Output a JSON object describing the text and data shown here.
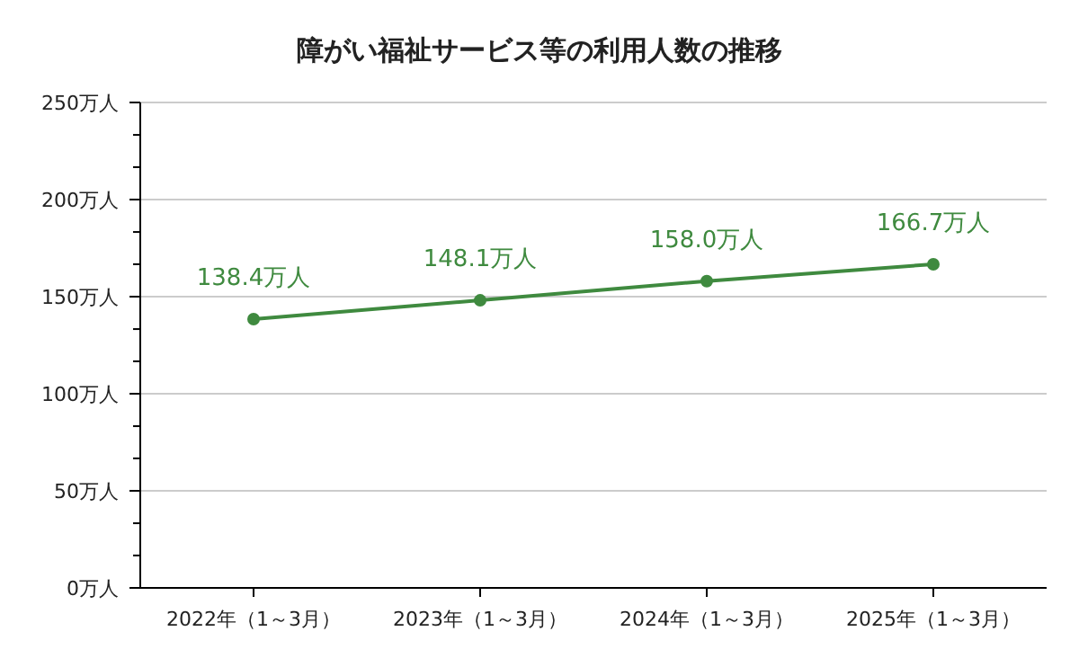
{
  "chart_data": {
    "type": "line",
    "title": "障がい福祉サービス等の利用人数の推移",
    "categories": [
      "2022年（1～3月）",
      "2023年（1～3月）",
      "2024年（1～3月）",
      "2025年（1～3月）"
    ],
    "values": [
      138.4,
      148.1,
      158.0,
      166.7
    ],
    "value_labels": [
      "138.4万人",
      "148.1万人",
      "158.0万人",
      "166.7万人"
    ],
    "color": "#3f8a3f",
    "marker": "circle",
    "line_style": "solid",
    "grid": "y",
    "ylim": [
      0,
      250
    ],
    "yticks": [
      {
        "value": 0,
        "label": "0万人"
      },
      {
        "value": 16.7,
        "label": null
      },
      {
        "value": 33.3,
        "label": null
      },
      {
        "value": 50,
        "label": "50万人"
      },
      {
        "value": 66.7,
        "label": null
      },
      {
        "value": 83.3,
        "label": null
      },
      {
        "value": 100,
        "label": "100万人"
      },
      {
        "value": 116.7,
        "label": null
      },
      {
        "value": 133.3,
        "label": null
      },
      {
        "value": 150,
        "label": "150万人"
      },
      {
        "value": 166.7,
        "label": null
      },
      {
        "value": 183.3,
        "label": null
      },
      {
        "value": 200,
        "label": "200万人"
      },
      {
        "value": 216.7,
        "label": null
      },
      {
        "value": 233.3,
        "label": null
      },
      {
        "value": 250,
        "label": "250万人"
      }
    ]
  }
}
